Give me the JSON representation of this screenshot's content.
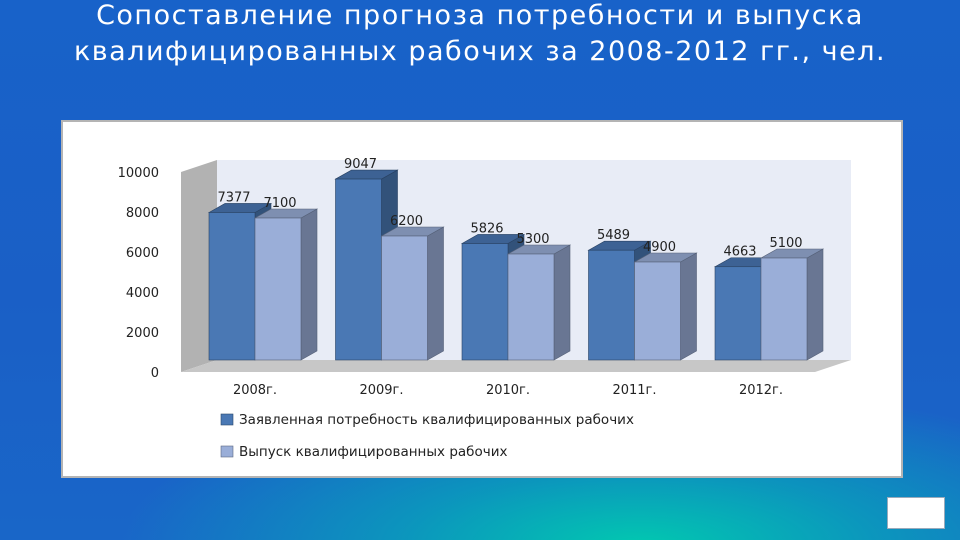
{
  "slide": {
    "title": "Сопоставление прогноза потребности и выпуска квалифицированных рабочих за 2008-2012 гг., чел."
  },
  "colors": {
    "series1": "#4a78b4",
    "series2": "#9aaed8",
    "wall": "#e8ecf6",
    "floor": "#c7c7c7"
  },
  "chart_data": {
    "type": "bar",
    "categories": [
      "2008г.",
      "2009г.",
      "2010г.",
      "2011г.",
      "2012г."
    ],
    "series": [
      {
        "name": "Заявленная потребность квалифицированных рабочих",
        "values": [
          7377,
          9047,
          5826,
          5489,
          4663
        ]
      },
      {
        "name": "Выпуск квалифицированных рабочих",
        "values": [
          7100,
          6200,
          5300,
          4900,
          5100
        ]
      }
    ],
    "yticks": [
      "0",
      "2000",
      "4000",
      "6000",
      "8000",
      "10000"
    ],
    "ylim": [
      0,
      10000
    ],
    "legend": "bottom",
    "grid": false
  }
}
